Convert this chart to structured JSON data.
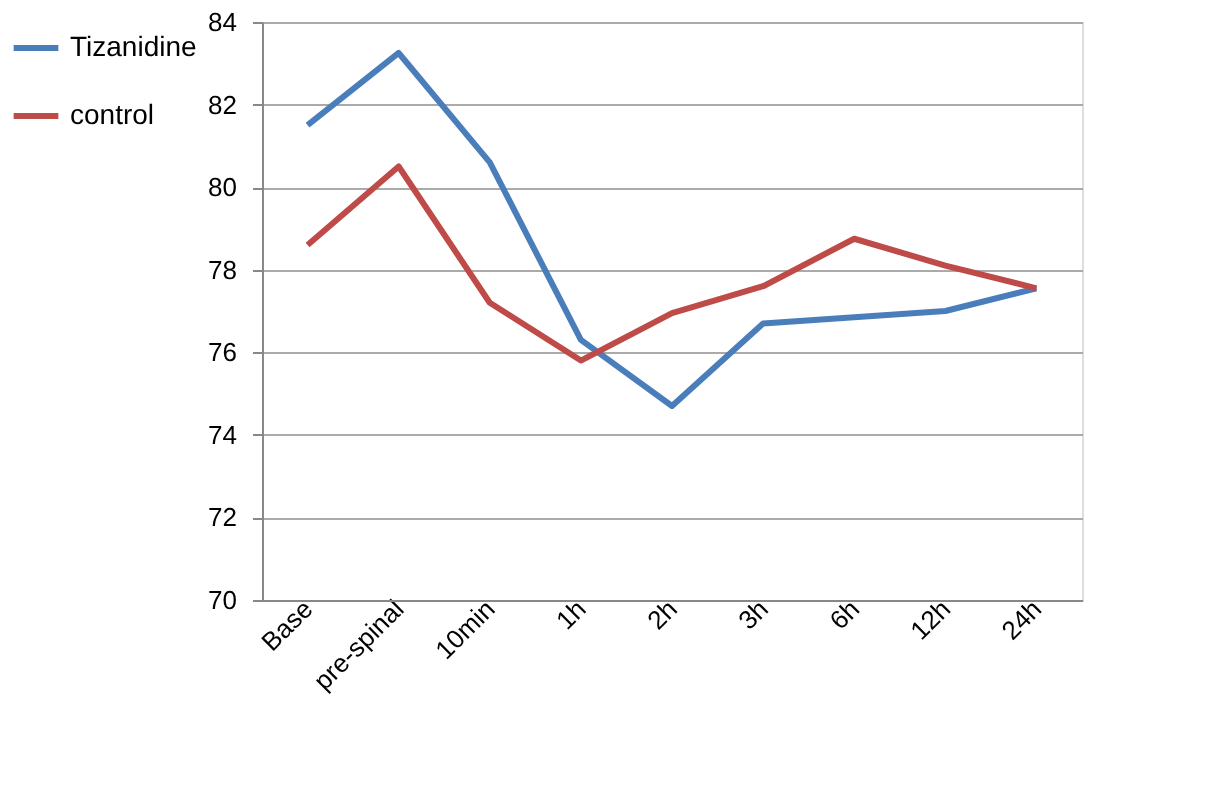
{
  "chart_data": {
    "type": "line",
    "categories": [
      "Base",
      "pre-spinal",
      "10min",
      "1h",
      "2h",
      "3h",
      "6h",
      "12h",
      "24h"
    ],
    "series": [
      {
        "name": "Tizanidine",
        "color": "#4a7ebb",
        "values": [
          81.5,
          83.25,
          80.6,
          76.3,
          74.7,
          76.7,
          76.85,
          77.0,
          77.55
        ]
      },
      {
        "name": "control",
        "color": "#be4b48",
        "values": [
          78.6,
          80.5,
          77.2,
          75.8,
          76.95,
          77.6,
          78.75,
          78.1,
          77.55
        ]
      }
    ],
    "ylim": [
      70,
      84
    ],
    "yticks": [
      70,
      72,
      74,
      76,
      78,
      80,
      82,
      84
    ],
    "grid": "y",
    "legend": "left",
    "marker": "none",
    "line_style": "solid"
  }
}
